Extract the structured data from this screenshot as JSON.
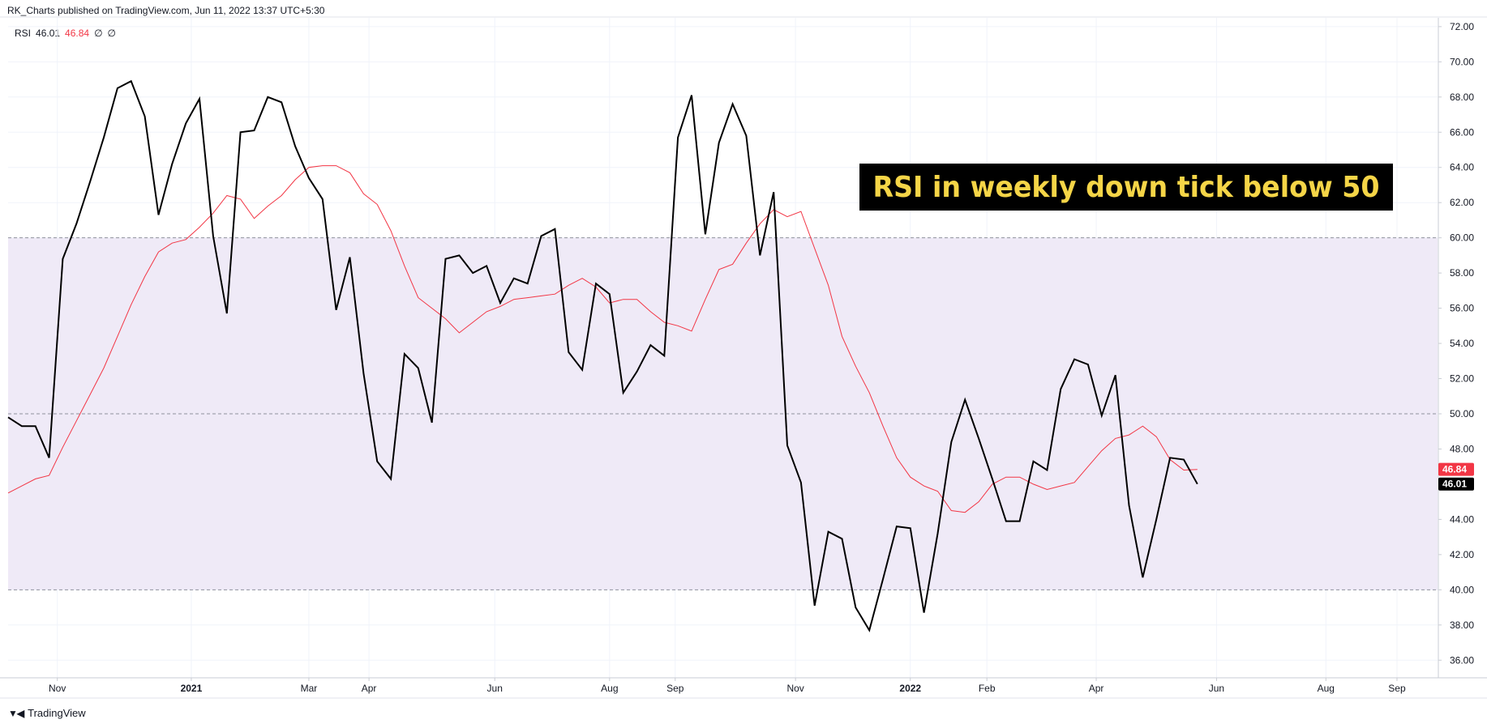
{
  "header": {
    "publish_line": "RK_Charts published on TradingView.com, Jun 11, 2022 13:37 UTC+5:30"
  },
  "legend": {
    "indicator": "RSI",
    "rsi_value": "46.01",
    "sma_value": "46.84",
    "extra1": "∅",
    "extra2": "∅"
  },
  "annotation": {
    "text": "RSI in weekly down tick below 50"
  },
  "footer": {
    "brand": "TradingView"
  },
  "colors": {
    "rsi_line": "#000000",
    "sma_line": "#f23645",
    "band_fill": "#efeaf7",
    "annotation_bg": "#000000",
    "annotation_text": "#f5d547",
    "sma_label_bg": "#f23645",
    "rsi_label_bg": "#000000"
  },
  "chart_data": {
    "type": "line",
    "ylim": [
      35,
      72.5
    ],
    "y_ticks": [
      "72.00",
      "70.00",
      "68.00",
      "66.00",
      "64.00",
      "62.00",
      "60.00",
      "58.00",
      "56.00",
      "54.00",
      "52.00",
      "50.00",
      "48.00",
      "46.00",
      "44.00",
      "42.00",
      "40.00",
      "38.00",
      "36.00"
    ],
    "x_ticks": [
      {
        "label": "Nov",
        "index": 3.6
      },
      {
        "label": "2021",
        "index": 13.4,
        "bold": true
      },
      {
        "label": "Mar",
        "index": 22.0
      },
      {
        "label": "Apr",
        "index": 26.4
      },
      {
        "label": "Jun",
        "index": 35.6
      },
      {
        "label": "Aug",
        "index": 44.0
      },
      {
        "label": "Sep",
        "index": 48.8
      },
      {
        "label": "Nov",
        "index": 57.6
      },
      {
        "label": "2022",
        "index": 66.0,
        "bold": true
      },
      {
        "label": "Feb",
        "index": 71.6
      },
      {
        "label": "Apr",
        "index": 79.6
      },
      {
        "label": "Jun",
        "index": 88.4
      },
      {
        "label": "Aug",
        "index": 96.4
      },
      {
        "label": "Sep",
        "index": 101.6
      }
    ],
    "bands": {
      "upper": 60,
      "middle": 50,
      "lower": 40
    },
    "series": [
      {
        "name": "RSI",
        "values": [
          49.8,
          49.3,
          49.3,
          47.5,
          58.8,
          60.8,
          63.2,
          65.7,
          68.5,
          68.9,
          66.9,
          61.3,
          64.2,
          66.5,
          67.9,
          60.1,
          55.7,
          66.0,
          66.1,
          68.0,
          67.7,
          65.2,
          63.4,
          62.2,
          55.9,
          58.9,
          52.3,
          47.3,
          46.3,
          53.4,
          52.6,
          49.5,
          58.8,
          59.0,
          58.0,
          58.4,
          56.3,
          57.7,
          57.4,
          60.1,
          60.5,
          53.5,
          52.5,
          57.4,
          56.8,
          51.2,
          52.4,
          53.9,
          53.3,
          65.7,
          68.1,
          60.2,
          65.4,
          67.6,
          65.8,
          59.0,
          62.6,
          48.2,
          46.1,
          39.1,
          43.3,
          42.9,
          39.0,
          37.7,
          40.6,
          43.6,
          43.5,
          38.7,
          43.2,
          48.4,
          50.8,
          48.6,
          46.3,
          43.9,
          43.9,
          47.3,
          46.8,
          51.4,
          53.1,
          52.8,
          49.9,
          52.2,
          44.8,
          40.7,
          44.0,
          47.5,
          47.4,
          46.01
        ]
      },
      {
        "name": "SMA",
        "values": [
          45.5,
          45.9,
          46.3,
          46.5,
          48.1,
          49.6,
          51.1,
          52.6,
          54.4,
          56.2,
          57.8,
          59.2,
          59.7,
          59.9,
          60.6,
          61.4,
          62.4,
          62.2,
          61.1,
          61.8,
          62.4,
          63.3,
          64.0,
          64.1,
          64.1,
          63.7,
          62.5,
          61.9,
          60.4,
          58.4,
          56.6,
          56.0,
          55.4,
          54.6,
          55.2,
          55.8,
          56.1,
          56.5,
          56.6,
          56.7,
          56.8,
          57.3,
          57.7,
          57.2,
          56.3,
          56.5,
          56.5,
          55.8,
          55.2,
          55.0,
          54.7,
          56.5,
          58.2,
          58.5,
          59.7,
          60.8,
          61.6,
          61.2,
          61.5,
          59.4,
          57.3,
          54.4,
          52.7,
          51.2,
          49.3,
          47.5,
          46.4,
          45.9,
          45.6,
          44.5,
          44.4,
          45.0,
          46.0,
          46.4,
          46.4,
          46.0,
          45.7,
          45.9,
          46.1,
          47.0,
          47.9,
          48.6,
          48.8,
          49.3,
          48.7,
          47.4,
          46.8,
          46.84
        ]
      }
    ],
    "last_values": {
      "RSI": "46.01",
      "SMA": "46.84"
    }
  }
}
